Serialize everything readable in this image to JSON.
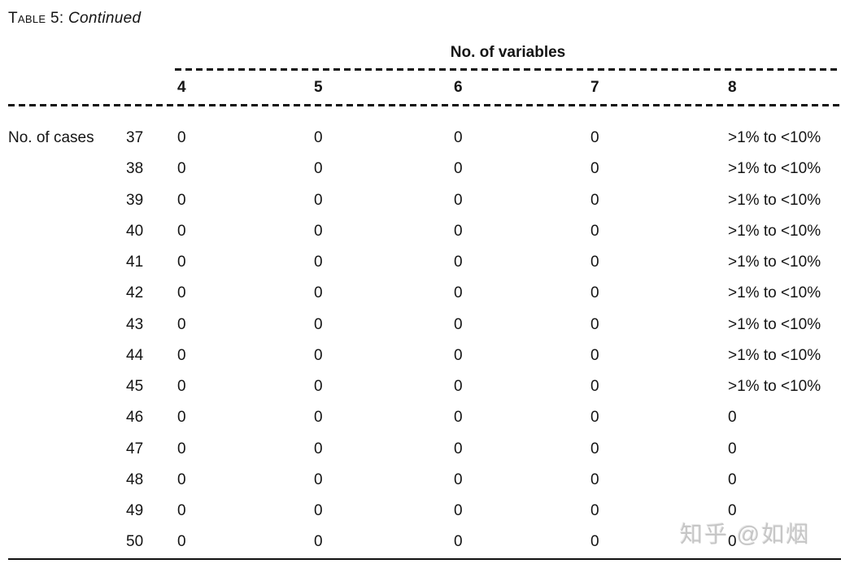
{
  "title": {
    "table_word": "Table",
    "table_number": "5:",
    "continued": "Continued"
  },
  "table": {
    "group_header": "No. of variables",
    "stub_label": "No. of cases",
    "columns": [
      "4",
      "5",
      "6",
      "7",
      "8"
    ],
    "rows": [
      {
        "case": "37",
        "values": [
          "0",
          "0",
          "0",
          "0",
          ">1% to <10%"
        ]
      },
      {
        "case": "38",
        "values": [
          "0",
          "0",
          "0",
          "0",
          ">1% to <10%"
        ]
      },
      {
        "case": "39",
        "values": [
          "0",
          "0",
          "0",
          "0",
          ">1% to <10%"
        ]
      },
      {
        "case": "40",
        "values": [
          "0",
          "0",
          "0",
          "0",
          ">1% to <10%"
        ]
      },
      {
        "case": "41",
        "values": [
          "0",
          "0",
          "0",
          "0",
          ">1% to <10%"
        ]
      },
      {
        "case": "42",
        "values": [
          "0",
          "0",
          "0",
          "0",
          ">1% to <10%"
        ]
      },
      {
        "case": "43",
        "values": [
          "0",
          "0",
          "0",
          "0",
          ">1% to <10%"
        ]
      },
      {
        "case": "44",
        "values": [
          "0",
          "0",
          "0",
          "0",
          ">1% to <10%"
        ]
      },
      {
        "case": "45",
        "values": [
          "0",
          "0",
          "0",
          "0",
          ">1% to <10%"
        ]
      },
      {
        "case": "46",
        "values": [
          "0",
          "0",
          "0",
          "0",
          "0"
        ]
      },
      {
        "case": "47",
        "values": [
          "0",
          "0",
          "0",
          "0",
          "0"
        ]
      },
      {
        "case": "48",
        "values": [
          "0",
          "0",
          "0",
          "0",
          "0"
        ]
      },
      {
        "case": "49",
        "values": [
          "0",
          "0",
          "0",
          "0",
          "0"
        ]
      },
      {
        "case": "50",
        "values": [
          "0",
          "0",
          "0",
          "0",
          "0"
        ]
      }
    ]
  },
  "colors": {
    "text": "#141414",
    "rule": "#111111",
    "watermark": "#c6c6c6"
  },
  "watermark": "知乎 @如烟"
}
